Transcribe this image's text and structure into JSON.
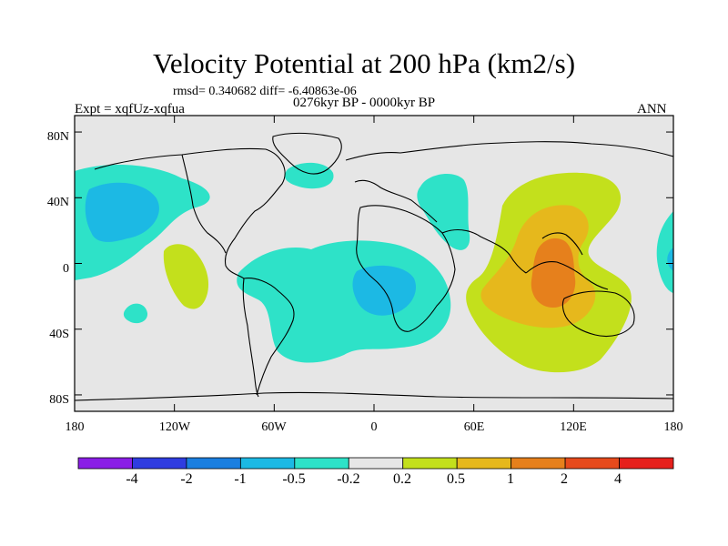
{
  "title": "Velocity Potential at 200 hPa (km2/s)",
  "stats": "rmsd= 0.340682 diff= -6.40863e-06",
  "expt": "Expt = xqfUz-xqfua",
  "period": "0276kyr BP - 0000kyr BP",
  "season": "ANN",
  "map": {
    "projection": "cylindrical-equidistant",
    "lon_range": [
      -180,
      180
    ],
    "lat_range": [
      -90,
      90
    ],
    "y_ticks": [
      "80N",
      "40N",
      "0",
      "40S",
      "80S"
    ],
    "x_ticks": [
      "180",
      "120W",
      "60W",
      "0",
      "60E",
      "120E",
      "180"
    ]
  },
  "colorbar": {
    "labels": [
      "-4",
      "-2",
      "-1",
      "-0.5",
      "-0.2",
      "0.2",
      "0.5",
      "1",
      "2",
      "4"
    ],
    "colors": [
      "#8a1ee6",
      "#2f3de0",
      "#1a7fe0",
      "#1cb9e4",
      "#2ee2c8",
      "#e6e6e6",
      "#c3e01c",
      "#e6b81c",
      "#e6801c",
      "#e64a1c",
      "#e6201c"
    ]
  }
}
